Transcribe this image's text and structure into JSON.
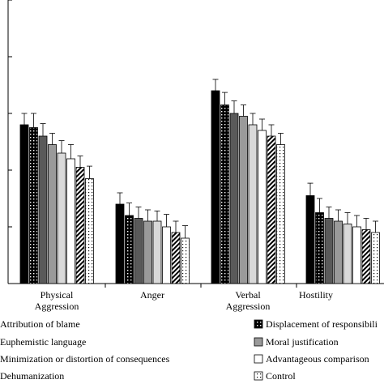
{
  "chart_data": {
    "type": "bar",
    "title": "",
    "xlabel": "",
    "ylabel": "",
    "ylim": [
      0,
      5
    ],
    "y_ticks_labeled": false,
    "categories": [
      [
        "Physical",
        "Aggression"
      ],
      [
        "Anger"
      ],
      [
        "Verbal",
        "Aggression"
      ],
      [
        "Hostility"
      ]
    ],
    "series": [
      {
        "name": "Attribution of blame",
        "fill": "solid-black",
        "values": [
          2.8,
          1.4,
          3.4,
          1.55
        ],
        "errors": [
          0.2,
          0.2,
          0.2,
          0.22
        ]
      },
      {
        "name": "Displacement of responsibility",
        "fill": "dots-black",
        "values": [
          2.75,
          1.2,
          3.15,
          1.25
        ],
        "errors": [
          0.25,
          0.22,
          0.22,
          0.25
        ]
      },
      {
        "name": "Euphemistic language",
        "fill": "dark-gray",
        "values": [
          2.6,
          1.15,
          3.0,
          1.15
        ],
        "errors": [
          0.22,
          0.2,
          0.22,
          0.2
        ]
      },
      {
        "name": "Moral justification",
        "fill": "mid-gray",
        "values": [
          2.45,
          1.1,
          2.95,
          1.1
        ],
        "errors": [
          0.2,
          0.2,
          0.2,
          0.2
        ]
      },
      {
        "name": "Minimization or distortion of consequences",
        "fill": "light-gray",
        "values": [
          2.3,
          1.1,
          2.8,
          1.05
        ],
        "errors": [
          0.22,
          0.18,
          0.2,
          0.2
        ]
      },
      {
        "name": "Advantageous comparison",
        "fill": "white",
        "values": [
          2.2,
          1.0,
          2.7,
          1.0
        ],
        "errors": [
          0.25,
          0.22,
          0.2,
          0.2
        ]
      },
      {
        "name": "Dehumanization",
        "fill": "diagonal-hatch",
        "values": [
          2.05,
          0.9,
          2.6,
          0.95
        ],
        "errors": [
          0.2,
          0.2,
          0.2,
          0.2
        ]
      },
      {
        "name": "Control",
        "fill": "white-dots",
        "values": [
          1.85,
          0.8,
          2.45,
          0.9
        ],
        "errors": [
          0.22,
          0.22,
          0.2,
          0.2
        ]
      }
    ]
  },
  "legend": {
    "left": [
      "Attribution of blame",
      "Euphemistic language",
      "Minimization or distortion of consequences",
      "Dehumanization"
    ],
    "right": [
      "Displacement of responsibili",
      "Moral justification",
      "Advantageous comparison",
      "Control"
    ]
  }
}
